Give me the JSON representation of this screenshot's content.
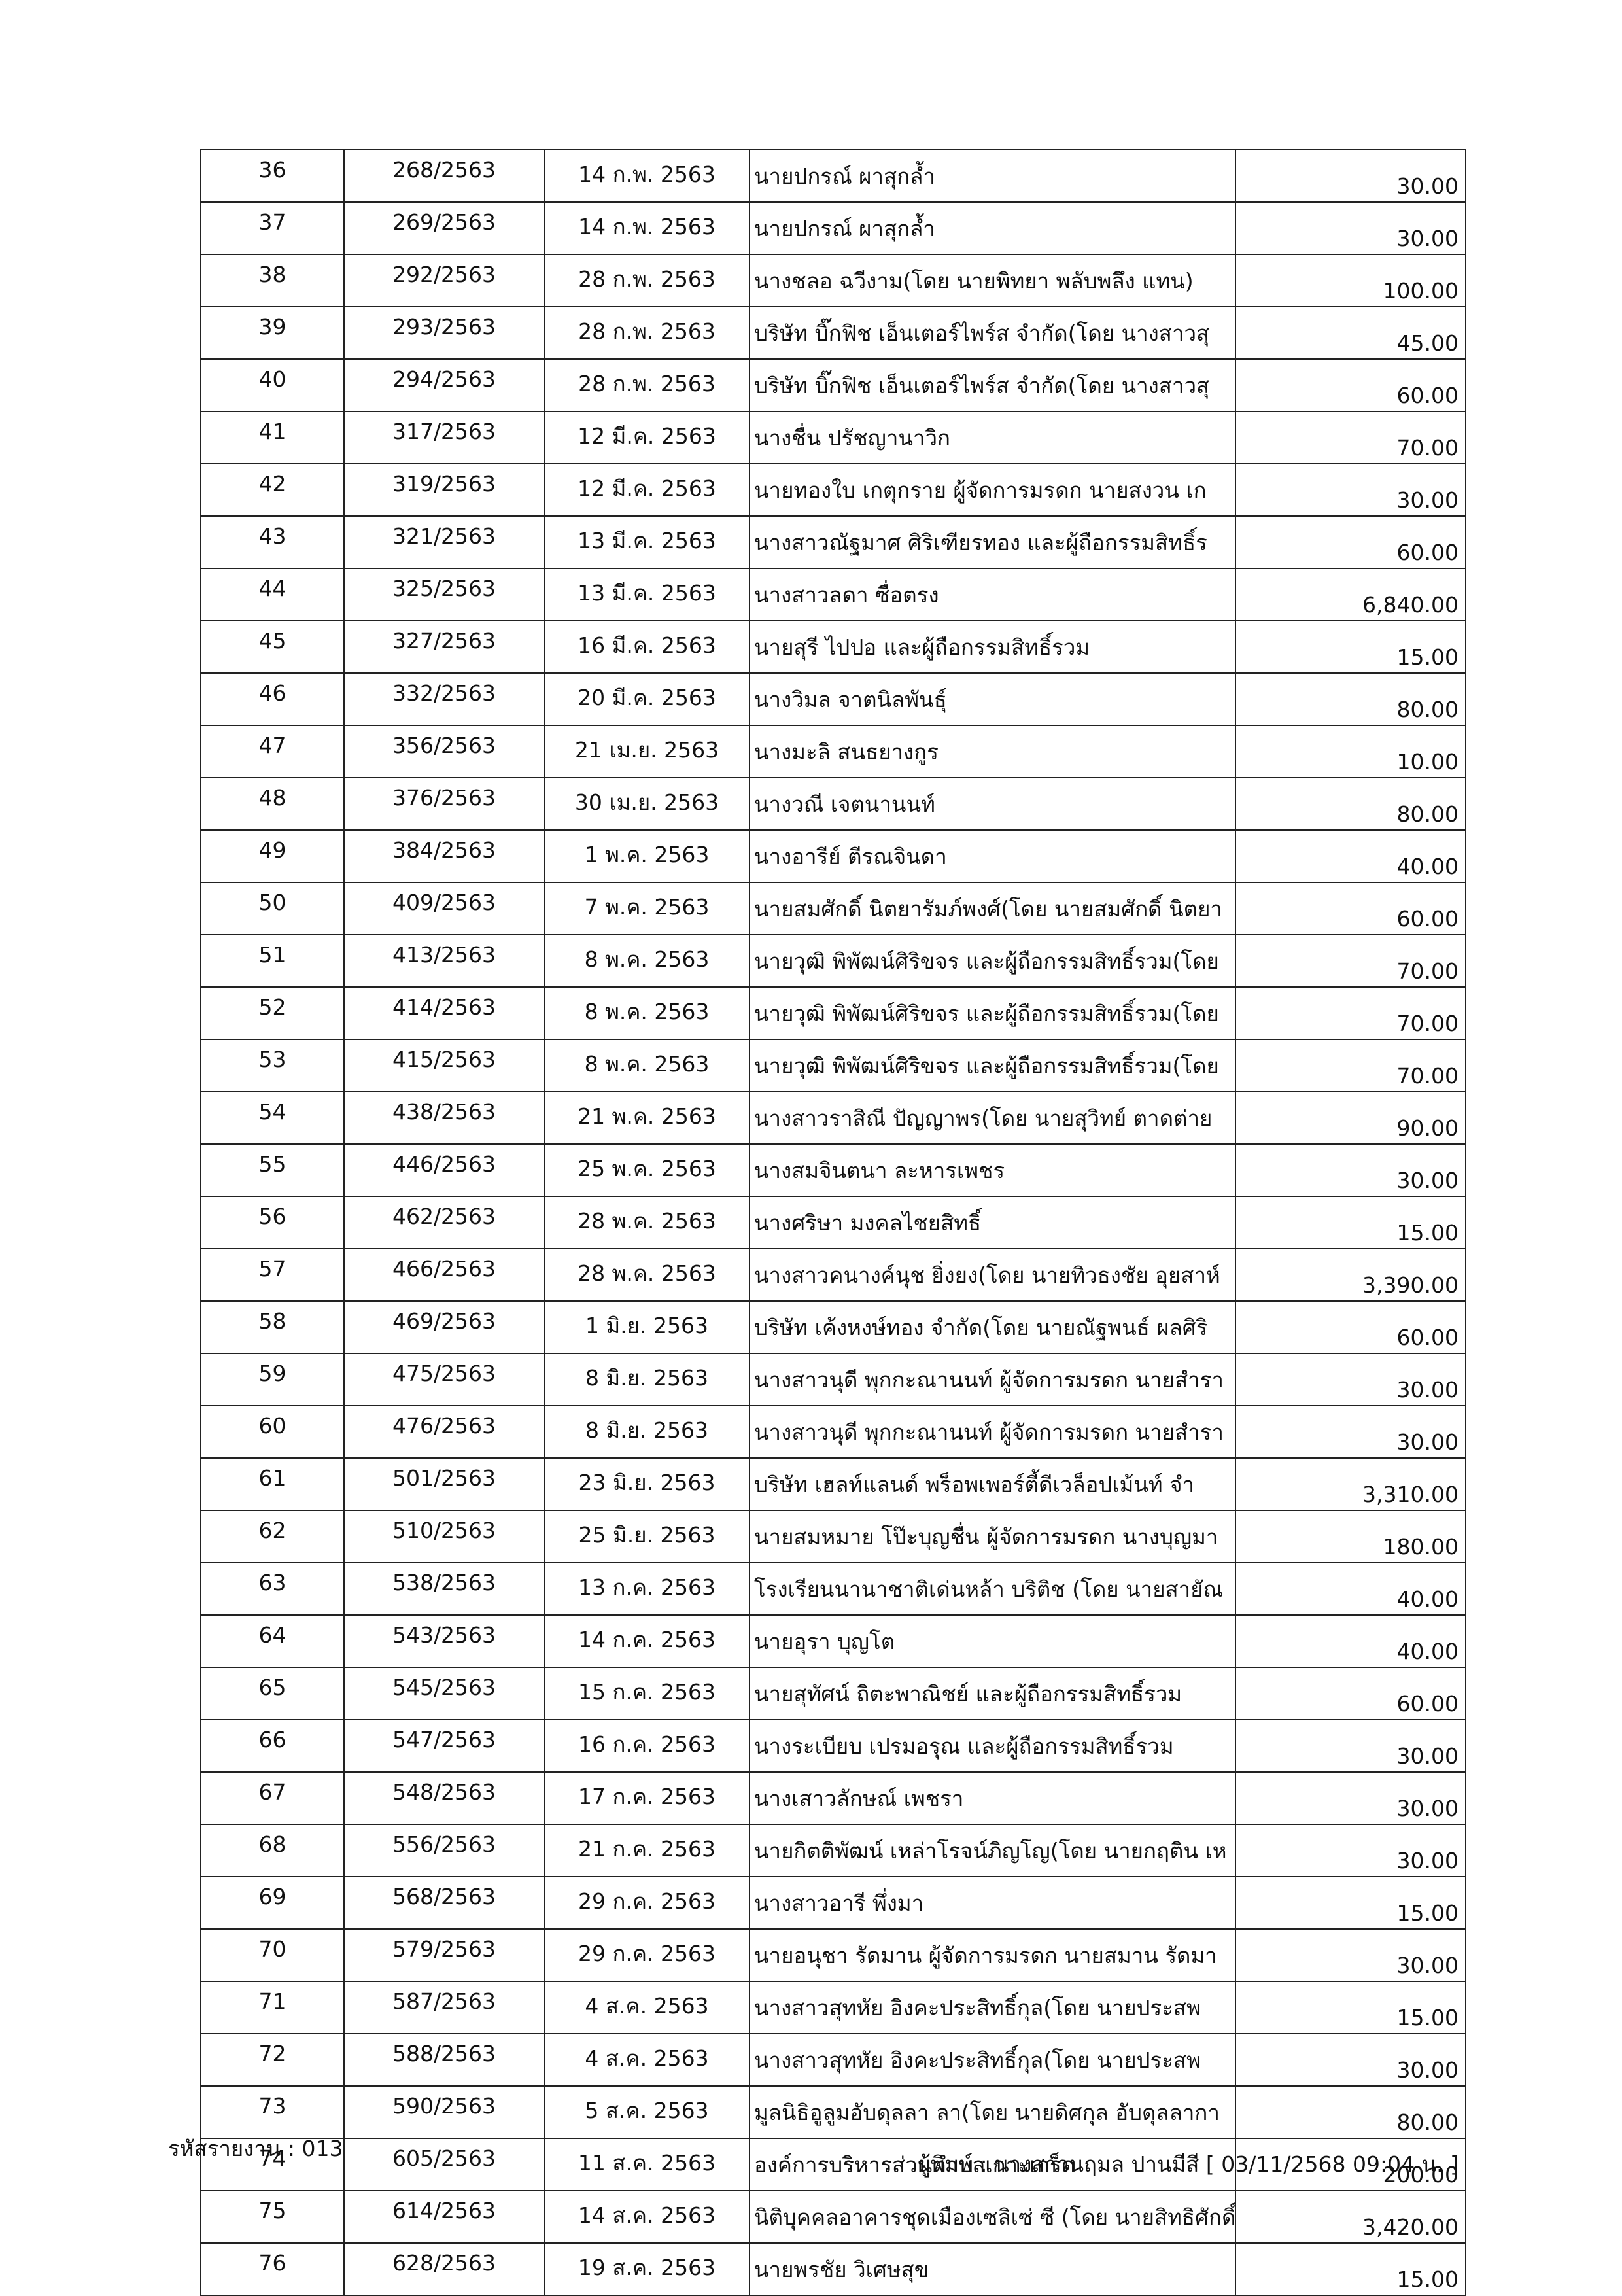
{
  "table": {
    "rows": [
      [
        "36",
        "268/2563",
        "14 ก.พ. 2563",
        "นายปกรณ์ ผาสุกล้ำ",
        "30.00"
      ],
      [
        "37",
        "269/2563",
        "14 ก.พ. 2563",
        "นายปกรณ์ ผาสุกล้ำ",
        "30.00"
      ],
      [
        "38",
        "292/2563",
        "28 ก.พ. 2563",
        "นางชลอ ฉวีงาม(โดย นายพิทยา พลับพลึง แทน)",
        "100.00"
      ],
      [
        "39",
        "293/2563",
        "28 ก.พ. 2563",
        "บริษัท บิ๊กฟิช เอ็นเตอร์ไพร์ส จำกัด(โดย นางสาวสุ",
        "45.00"
      ],
      [
        "40",
        "294/2563",
        "28 ก.พ. 2563",
        "บริษัท บิ๊กฟิช เอ็นเตอร์ไพร์ส จำกัด(โดย นางสาวสุ",
        "60.00"
      ],
      [
        "41",
        "317/2563",
        "12 มี.ค. 2563",
        "นางชื่น ปรัชญานาวิก",
        "70.00"
      ],
      [
        "42",
        "319/2563",
        "12 มี.ค. 2563",
        "นายทองใบ เกตุกราย ผู้จัดการมรดก นายสงวน เก",
        "30.00"
      ],
      [
        "43",
        "321/2563",
        "13 มี.ค. 2563",
        "นางสาวณัฐมาศ ศิริเฑียรทอง และผู้ถือกรรมสิทธิ์ร",
        "60.00"
      ],
      [
        "44",
        "325/2563",
        "13 มี.ค. 2563",
        "นางสาวลดา ซื่อตรง",
        "6,840.00"
      ],
      [
        "45",
        "327/2563",
        "16 มี.ค. 2563",
        "นายสุรี ไปปอ และผู้ถือกรรมสิทธิ์รวม",
        "15.00"
      ],
      [
        "46",
        "332/2563",
        "20 มี.ค. 2563",
        "นางวิมล จาตนิลพันธุ์",
        "80.00"
      ],
      [
        "47",
        "356/2563",
        "21 เม.ย. 2563",
        "นางมะลิ สนธยางกูร",
        "10.00"
      ],
      [
        "48",
        "376/2563",
        "30 เม.ย. 2563",
        "นางวณี เจตนานนท์",
        "80.00"
      ],
      [
        "49",
        "384/2563",
        "1 พ.ค. 2563",
        "นางอารีย์ ตีรณจินดา",
        "40.00"
      ],
      [
        "50",
        "409/2563",
        "7 พ.ค. 2563",
        "นายสมศักดิ์ นิตยารัมภ์พงศ์(โดย นายสมศักดิ์ นิตยา",
        "60.00"
      ],
      [
        "51",
        "413/2563",
        "8 พ.ค. 2563",
        "นายวุฒิ พิพัฒน์ศิริขจร และผู้ถือกรรมสิทธิ์รวม(โดย",
        "70.00"
      ],
      [
        "52",
        "414/2563",
        "8 พ.ค. 2563",
        "นายวุฒิ พิพัฒน์ศิริขจร และผู้ถือกรรมสิทธิ์รวม(โดย",
        "70.00"
      ],
      [
        "53",
        "415/2563",
        "8 พ.ค. 2563",
        "นายวุฒิ พิพัฒน์ศิริขจร และผู้ถือกรรมสิทธิ์รวม(โดย",
        "70.00"
      ],
      [
        "54",
        "438/2563",
        "21 พ.ค. 2563",
        "นางสาวราสิณี ปัญญาพร(โดย นายสุวิทย์ ตาดต่าย",
        "90.00"
      ],
      [
        "55",
        "446/2563",
        "25 พ.ค. 2563",
        "นางสมจินตนา ละหารเพชร",
        "30.00"
      ],
      [
        "56",
        "462/2563",
        "28 พ.ค. 2563",
        "นางศริษา มงคลไชยสิทธิ์",
        "15.00"
      ],
      [
        "57",
        "466/2563",
        "28 พ.ค. 2563",
        "นางสาวคนางค์นุช ยิ่งยง(โดย นายทิวธงชัย อุยสาห์",
        "3,390.00"
      ],
      [
        "58",
        "469/2563",
        "1 มิ.ย. 2563",
        "บริษัท เค้งหงษ์ทอง จำกัด(โดย นายณัฐพนธ์ ผลศิริ",
        "60.00"
      ],
      [
        "59",
        "475/2563",
        "8 มิ.ย. 2563",
        "นางสาวนุดี พุกกะณานนท์ ผู้จัดการมรดก นายสำรา",
        "30.00"
      ],
      [
        "60",
        "476/2563",
        "8 มิ.ย. 2563",
        "นางสาวนุดี พุกกะณานนท์ ผู้จัดการมรดก นายสำรา",
        "30.00"
      ],
      [
        "61",
        "501/2563",
        "23 มิ.ย. 2563",
        "บริษัท เฮลท์แลนด์ พร็อพเพอร์ตี้ดีเวล็อปเม้นท์ จำ",
        "3,310.00"
      ],
      [
        "62",
        "510/2563",
        "25 มิ.ย. 2563",
        "นายสมหมาย โป๊ะบุญชื่น ผู้จัดการมรดก นางบุญมา",
        "180.00"
      ],
      [
        "63",
        "538/2563",
        "13 ก.ค. 2563",
        "โรงเรียนนานาชาติเด่นหล้า บริติช (โดย นายสายัณ",
        "40.00"
      ],
      [
        "64",
        "543/2563",
        "14 ก.ค. 2563",
        "นายอุรา บุญโต",
        "40.00"
      ],
      [
        "65",
        "545/2563",
        "15 ก.ค. 2563",
        "นายสุทัศน์ ถิตะพาณิชย์ และผู้ถือกรรมสิทธิ์รวม",
        "60.00"
      ],
      [
        "66",
        "547/2563",
        "16 ก.ค. 2563",
        "นางระเบียบ เปรมอรุณ และผู้ถือกรรมสิทธิ์รวม",
        "30.00"
      ],
      [
        "67",
        "548/2563",
        "17 ก.ค. 2563",
        "นางเสาวลักษณ์ เพชรา",
        "30.00"
      ],
      [
        "68",
        "556/2563",
        "21 ก.ค. 2563",
        "นายกิตติพัฒน์ เหล่าโรจน์ภิญโญ(โดย นายกฤติน เห",
        "30.00"
      ],
      [
        "69",
        "568/2563",
        "29 ก.ค. 2563",
        "นางสาวอารี พึ่งมา",
        "15.00"
      ],
      [
        "70",
        "579/2563",
        "29 ก.ค. 2563",
        "นายอนุชา รัดมาน ผู้จัดการมรดก นายสมาน รัดมา",
        "30.00"
      ],
      [
        "71",
        "587/2563",
        "4 ส.ค. 2563",
        "นางสาวสุทหัย อิงคะประสิทธิ์กุล(โดย นายประสพ",
        "15.00"
      ],
      [
        "72",
        "588/2563",
        "4 ส.ค. 2563",
        "นางสาวสุทหัย อิงคะประสิทธิ์กุล(โดย นายประสพ",
        "30.00"
      ],
      [
        "73",
        "590/2563",
        "5 ส.ค. 2563",
        "มูลนิธิอูลูมอับดุลลา ลา(โดย นายดิศกุล อับดุลลากา",
        "80.00"
      ],
      [
        "74",
        "605/2563",
        "11 ส.ค. 2563",
        "องค์การบริหารส่วนตำบลเกาะเกร็ด",
        "200.00"
      ],
      [
        "75",
        "614/2563",
        "14 ส.ค. 2563",
        "นิติบุคคลอาคารชุดเมืองเซลิเซ่ ซี (โดย นายสิทธิศักดิ์",
        "3,420.00"
      ],
      [
        "76",
        "628/2563",
        "19 ส.ค. 2563",
        "นายพรชัย วิเศษสุข",
        "15.00"
      ]
    ]
  },
  "footer": {
    "report_code": "รหัสรายงาน : 013",
    "printer": "ผู้พิมพ์ : นางสาวนฤมล ปานมีสี  [ 03/11/2568 09:04 น. ]"
  }
}
